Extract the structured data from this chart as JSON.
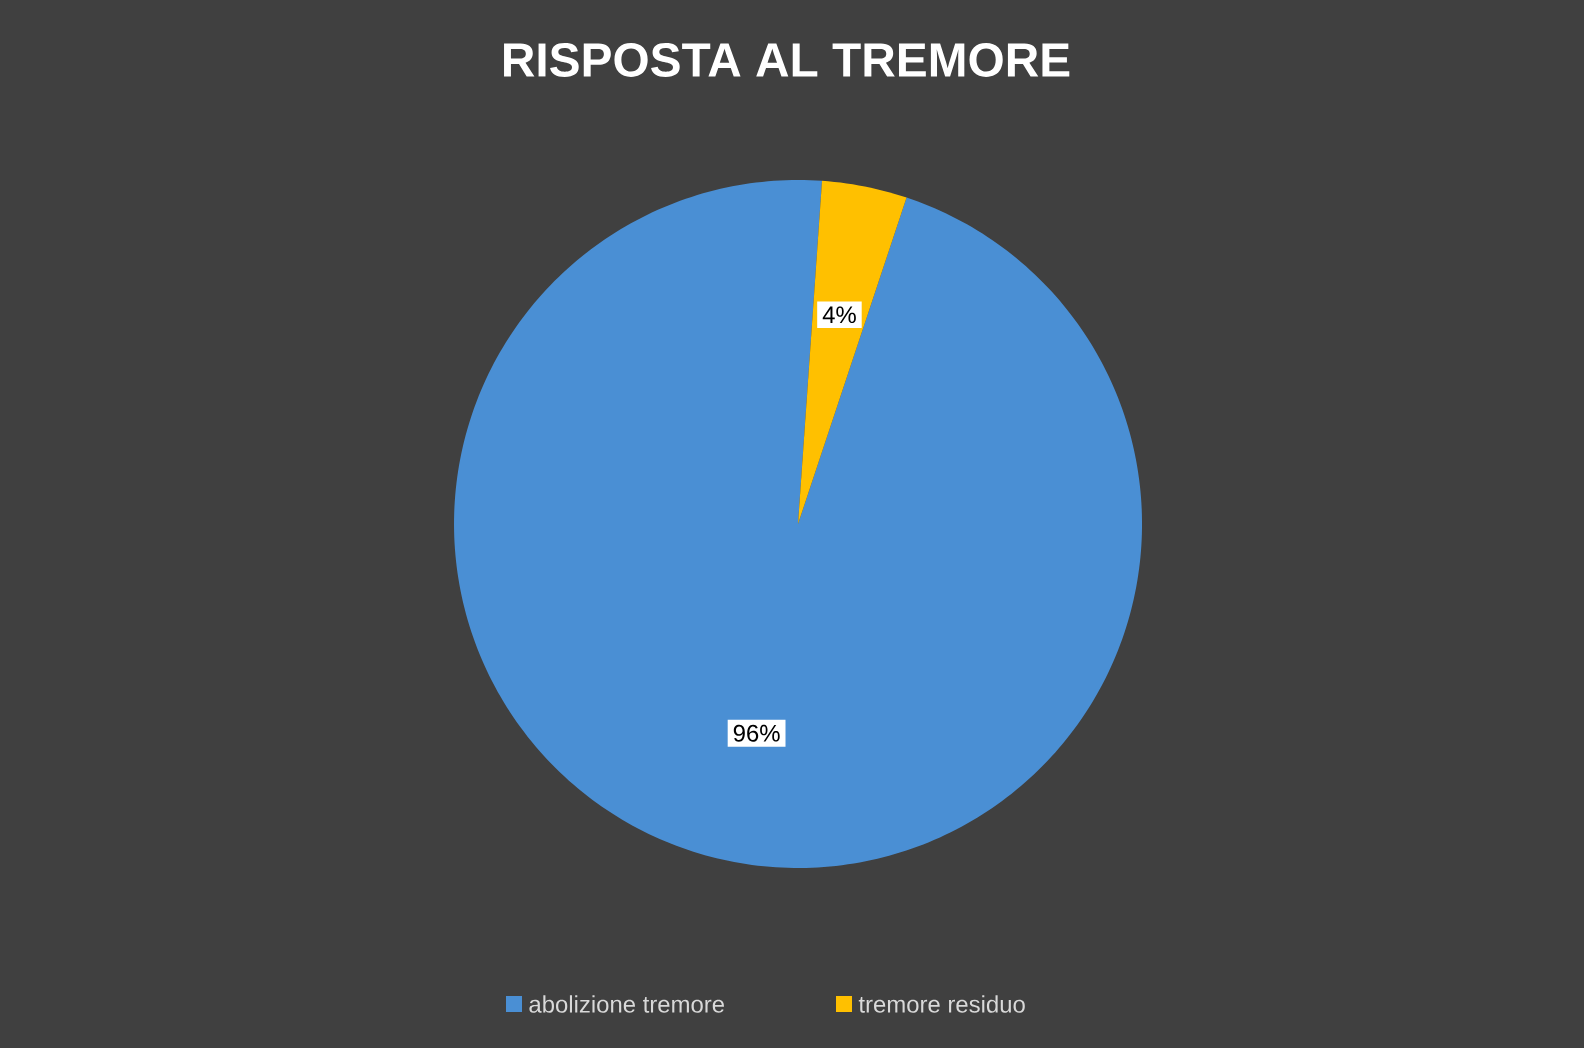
{
  "chart_data": {
    "type": "pie",
    "title": "RISPOSTA AL TREMORE",
    "categories": [
      "abolizione tremore",
      "tremore residuo"
    ],
    "values": [
      96,
      4
    ],
    "colors": [
      "#4a8fd4",
      "#ffc000"
    ],
    "value_labels": [
      "96%",
      "4%"
    ],
    "legend": "bottom"
  }
}
